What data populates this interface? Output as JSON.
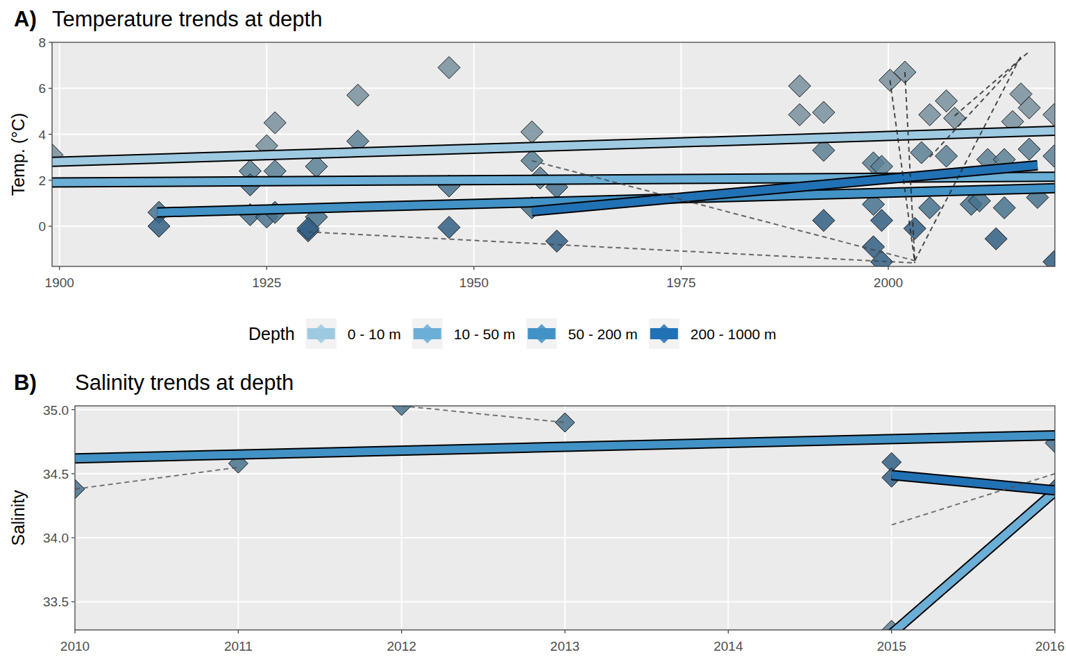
{
  "chart_data": [
    {
      "type": "scatter",
      "panel": "A)",
      "title": "Temperature trends at depth",
      "y_label": "Temp. (°C)",
      "xlim": [
        1899.1,
        2020.1
      ],
      "xticks": [
        1900,
        1925,
        1950,
        1975,
        2000
      ],
      "ylim": [
        -1.75,
        8
      ],
      "yticks": [
        0,
        2,
        4,
        6,
        8
      ],
      "grid": true,
      "legend": "bottom",
      "legend_title": "Depth",
      "series": [
        {
          "name": "0 - 10 m",
          "color": "#9ecae1",
          "marker": "diamond",
          "x": [
            1899.1,
            1926,
            1925,
            1936,
            1947,
            1957,
            1989.3,
            1989.3,
            1992.2,
            2000.2,
            2002,
            2005,
            2007,
            2008,
            2015,
            2016,
            2017,
            2020
          ],
          "values": [
            3.1,
            4.5,
            3.5,
            5.7,
            6.9,
            4.1,
            6.1,
            4.85,
            4.95,
            6.35,
            6.7,
            4.85,
            5.45,
            4.7,
            4.55,
            5.75,
            5.15,
            4.85
          ],
          "trend_x": [
            1899.1,
            2020.1
          ],
          "trend": [
            2.8,
            4.15
          ]
        },
        {
          "name": "10 - 50 m",
          "color": "#6baed6",
          "marker": "diamond",
          "x": [
            1923,
            1926,
            1931,
            1936,
            1957,
            1958,
            1992.2,
            1998.2,
            1999.2,
            2004,
            2007,
            2012,
            2014,
            2017,
            2020
          ],
          "values": [
            2.4,
            2.4,
            2.6,
            3.7,
            2.85,
            2.1,
            3.3,
            2.75,
            2.6,
            3.2,
            3.05,
            2.9,
            2.9,
            3.35,
            3.05
          ],
          "trend_x": [
            1899.1,
            2020.1
          ],
          "trend": [
            1.9,
            2.15
          ]
        },
        {
          "name": "50 - 200 m",
          "color": "#4292c6",
          "marker": "diamond",
          "x": [
            1912,
            1923,
            1923,
            1925,
            1926,
            1931,
            1947,
            1957,
            1960,
            1998.2,
            2005,
            2010,
            2011,
            2014,
            2018
          ],
          "values": [
            0.6,
            1.8,
            0.5,
            0.4,
            0.6,
            0.4,
            1.75,
            0.8,
            1.7,
            0.95,
            0.8,
            0.95,
            1.1,
            0.8,
            1.25
          ],
          "trend_x": [
            1911.8,
            2020.1
          ],
          "trend": [
            0.6,
            1.65
          ]
        },
        {
          "name": "200 - 1000 m",
          "color": "#2171b5",
          "marker": "diamond",
          "x": [
            1912,
            1930,
            1930,
            1947,
            1960,
            1992.2,
            1998.2,
            1999.2,
            1999.2,
            2003.2,
            2013,
            2020
          ],
          "values": [
            0,
            -0.2,
            -0.1,
            -0.05,
            -0.65,
            0.25,
            -0.9,
            -1.55,
            0.25,
            -0.1,
            -0.55,
            -1.55
          ],
          "trend_x": [
            1957,
            2018
          ],
          "trend": [
            0.65,
            2.65
          ]
        },
        {
          "type": "line",
          "line_style": "dashed",
          "color": "#444444",
          "x": [
            1930,
            2003.2
          ],
          "values": [
            -0.25,
            -1.6
          ]
        },
        {
          "type": "line",
          "line_style": "dashed",
          "color": "#444444",
          "x": [
            1957,
            2003.2
          ],
          "values": [
            2.85,
            -1.5
          ]
        },
        {
          "type": "line",
          "line_style": "dashed",
          "color": "#222222",
          "x": [
            2000.2,
            2003.2
          ],
          "values": [
            6.35,
            -1.6
          ]
        },
        {
          "type": "line",
          "line_style": "dashed",
          "color": "#222222",
          "x": [
            2002,
            2003.2
          ],
          "values": [
            6.7,
            -1.55
          ]
        },
        {
          "type": "line",
          "line_style": "dashed",
          "color": "#222222",
          "x": [
            2003.2,
            2016
          ],
          "values": [
            -1.5,
            7.4
          ]
        },
        {
          "type": "line",
          "line_style": "dashed",
          "color": "#222222",
          "x": [
            2005,
            2016
          ],
          "values": [
            3.0,
            7.3
          ]
        },
        {
          "type": "line",
          "line_style": "dashed",
          "color": "#222222",
          "x": [
            2008,
            2017
          ],
          "values": [
            4.8,
            7.6
          ]
        }
      ]
    },
    {
      "type": "scatter",
      "panel": "B)",
      "title": "Salinity trends at depth",
      "y_label": "Salinity",
      "xlim": [
        2010,
        2016
      ],
      "xticks": [
        2010,
        2011,
        2012,
        2013,
        2014,
        2015,
        2016
      ],
      "ylim": [
        33.28,
        35.03
      ],
      "yticks": [
        33.5,
        {
          "value": 34,
          "label": "34.0"
        },
        34.5,
        {
          "value": 35,
          "label": "35.0"
        }
      ],
      "grid": true,
      "series": [
        {
          "name": "10 - 50 m",
          "color": "#6baed6",
          "marker": "diamond",
          "x": [
            2015
          ],
          "values": [
            33.28
          ],
          "trend_x": [
            2015,
            2016
          ],
          "trend": [
            33.25,
            34.36
          ]
        },
        {
          "name": "50 - 200 m",
          "color": "#4292c6",
          "marker": "diamond",
          "x": [
            2010,
            2011,
            2012,
            2013,
            2016
          ],
          "values": [
            34.38,
            34.58,
            35.03,
            34.9,
            34.74
          ],
          "trend_x": [
            2010,
            2016
          ],
          "trend": [
            34.62,
            34.8
          ]
        },
        {
          "name": "200 - 1000 m",
          "color": "#2171b5",
          "marker": "diamond",
          "x": [
            2015,
            2015,
            2016
          ],
          "values": [
            34.59,
            34.47,
            34.38
          ],
          "trend_x": [
            2015,
            2016
          ],
          "trend": [
            34.49,
            34.37
          ]
        },
        {
          "type": "line",
          "line_style": "dashed",
          "color": "#555555",
          "x": [
            2010,
            2011
          ],
          "values": [
            34.38,
            34.55
          ]
        },
        {
          "type": "line",
          "line_style": "dashed",
          "color": "#555555",
          "x": [
            2012,
            2013
          ],
          "values": [
            35.03,
            34.9
          ]
        },
        {
          "type": "line",
          "line_style": "dashed",
          "color": "#555555",
          "x": [
            2015,
            2016
          ],
          "values": [
            34.1,
            34.5
          ]
        }
      ]
    }
  ]
}
